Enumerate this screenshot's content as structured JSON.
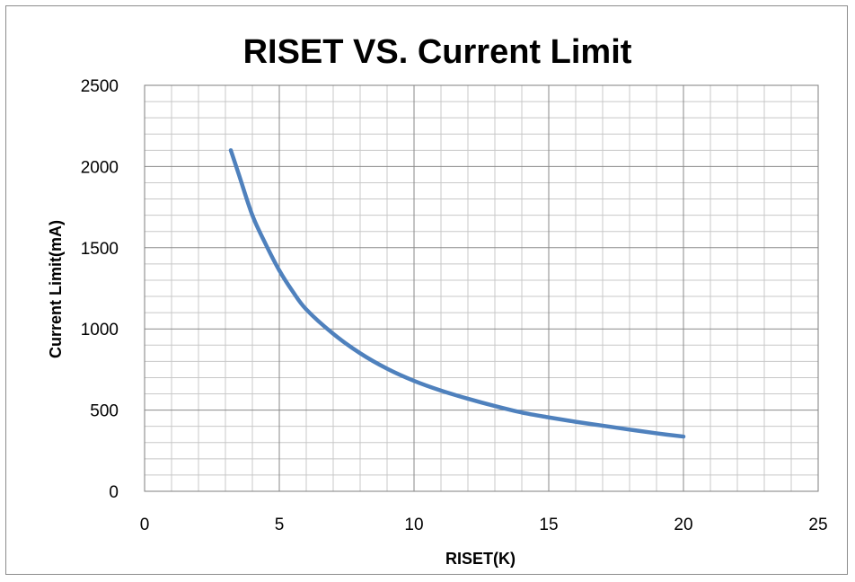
{
  "chart_data": {
    "type": "line",
    "title": "RISET VS. Current Limit",
    "xlabel": "RISET(K)",
    "ylabel": "Current Limit(mA)",
    "xlim": [
      0,
      25
    ],
    "ylim": [
      0,
      2500
    ],
    "x_ticks": [
      "0",
      "5",
      "10",
      "15",
      "20",
      "25"
    ],
    "y_ticks": [
      "0",
      "500",
      "1000",
      "1500",
      "2000",
      "2500"
    ],
    "grid": true,
    "legend": "none",
    "series": [
      {
        "color": "#4f81bd",
        "x": [
          3.2,
          3.5,
          4.0,
          4.5,
          5.0,
          5.5,
          6.0,
          7.0,
          8.0,
          9.0,
          10.0,
          11.0,
          12.0,
          13.0,
          14.0,
          15.0,
          16.0,
          17.0,
          18.0,
          19.0,
          20.0
        ],
        "y": [
          2100,
          1950,
          1700,
          1520,
          1360,
          1230,
          1120,
          970,
          850,
          755,
          680,
          620,
          570,
          525,
          485,
          455,
          428,
          404,
          380,
          357,
          337
        ]
      }
    ]
  }
}
